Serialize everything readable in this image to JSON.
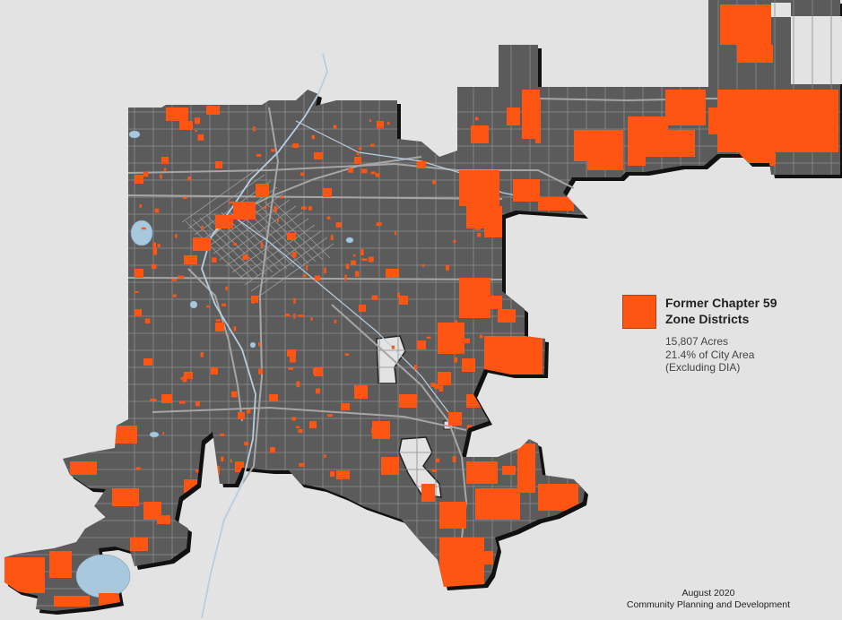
{
  "legend": {
    "title_line1": "Former Chapter 59",
    "title_line2": "Zone Districts",
    "acres": "15,807 Acres",
    "percent": "21.4% of City Area",
    "note": "(Excluding DIA)",
    "swatch_color": "#fe5612"
  },
  "credit": {
    "date": "August 2020",
    "department": "Community Planning and Development"
  },
  "colors": {
    "background": "#e3e3e3",
    "city_fill": "#5b5b5b",
    "shadow": "#111111",
    "roads": "#8c8c8c",
    "water": "#a8c8de",
    "zone": "#fe5612"
  }
}
